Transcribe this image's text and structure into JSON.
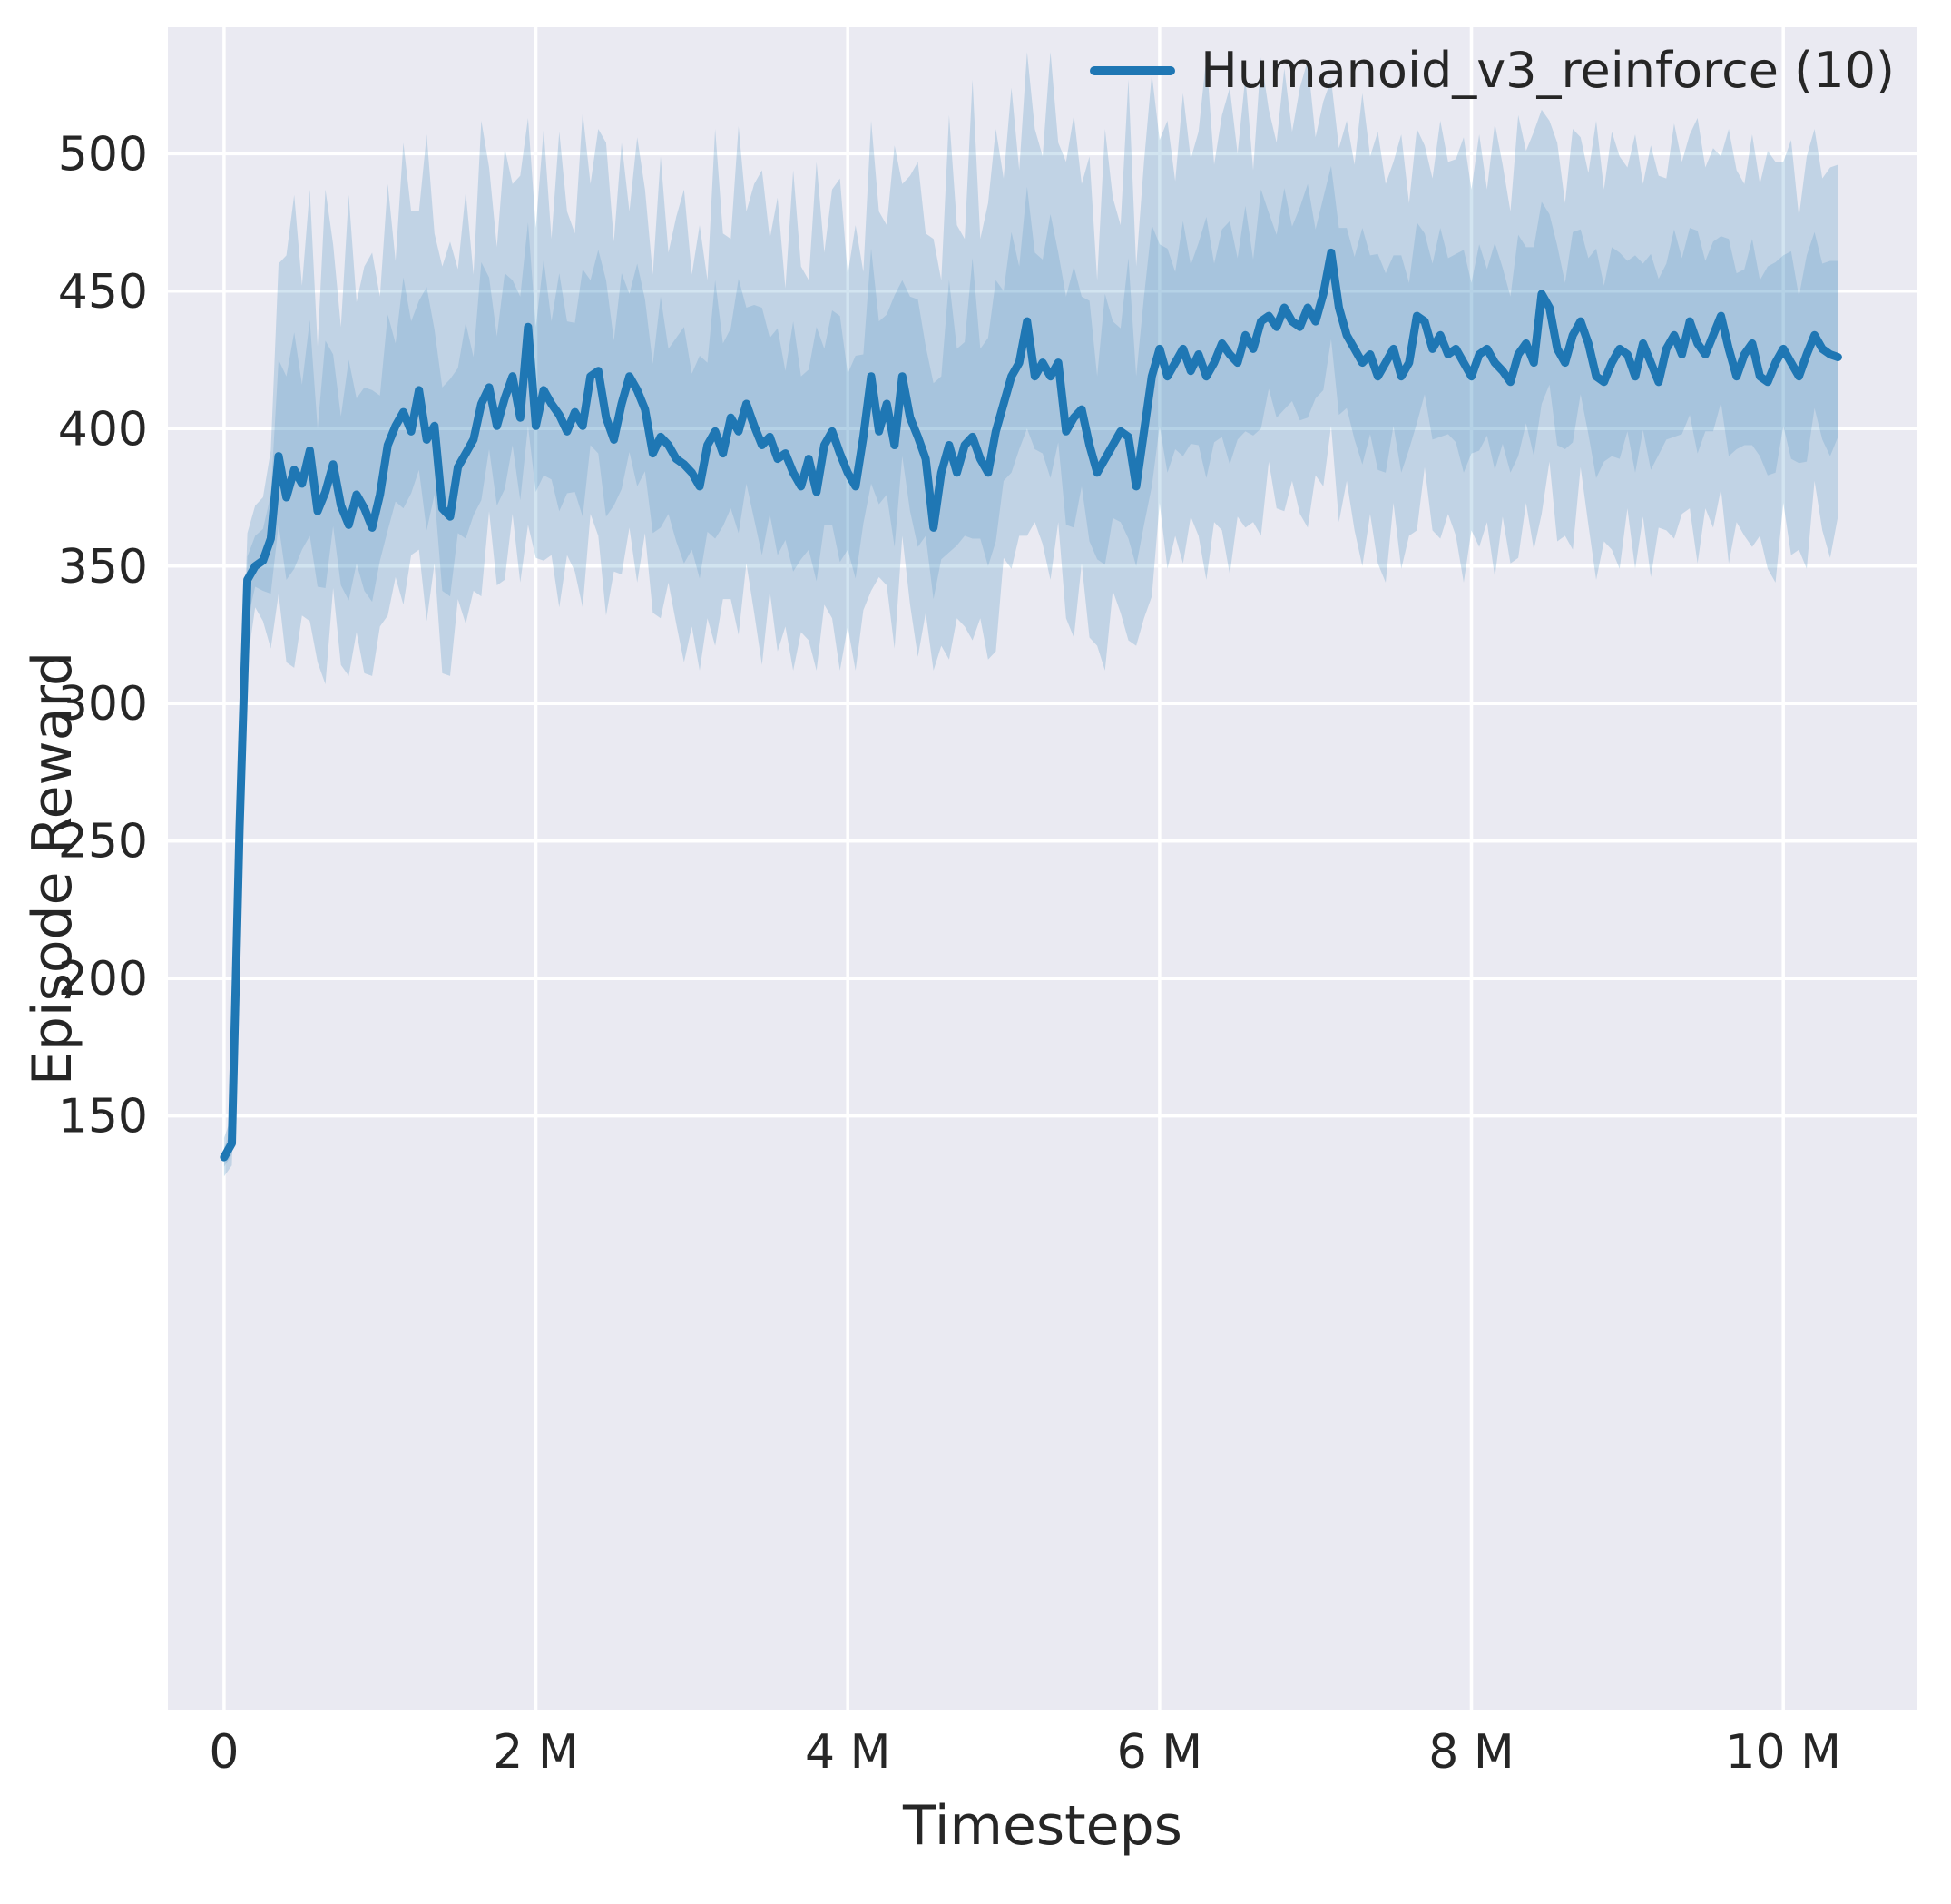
{
  "chart_data": {
    "type": "line",
    "title": "",
    "xlabel": "Timesteps",
    "ylabel": "Episode Reward",
    "x_unit": "millions of timesteps",
    "grid": true,
    "legend_position": "upper right",
    "xlim": [
      -0.36,
      10.86
    ],
    "ylim": [
      -66,
      546
    ],
    "xticks": {
      "values": [
        0,
        2,
        4,
        6,
        8,
        10
      ],
      "labels": [
        "0",
        "2 M",
        "4 M",
        "6 M",
        "8 M",
        "10 M"
      ]
    },
    "yticks": {
      "values": [
        150,
        200,
        250,
        300,
        350,
        400,
        450,
        500
      ],
      "labels": [
        "150",
        "200",
        "250",
        "300",
        "350",
        "400",
        "450",
        "500"
      ]
    },
    "colors": {
      "plot_bg": "#eaeaf2",
      "grid": "#ffffff",
      "text": "#262626",
      "line": "#1f77b4",
      "band_fill": "#1f77b4"
    },
    "series": [
      {
        "name": "Humanoid_v3_reinforce (10)",
        "color": "#1f77b4",
        "x": [
          0,
          0.05,
          0.1,
          0.15,
          0.2,
          0.25,
          0.3,
          0.35,
          0.4,
          0.45,
          0.5,
          0.55,
          0.6,
          0.65,
          0.7,
          0.75,
          0.8,
          0.85,
          0.9,
          0.95,
          1,
          1.05,
          1.1,
          1.15,
          1.2,
          1.25,
          1.3,
          1.35,
          1.4,
          1.45,
          1.5,
          1.55,
          1.6,
          1.65,
          1.7,
          1.75,
          1.8,
          1.85,
          1.9,
          1.95,
          2,
          2.05,
          2.1,
          2.15,
          2.2,
          2.25,
          2.3,
          2.35,
          2.4,
          2.45,
          2.5,
          2.55,
          2.6,
          2.65,
          2.7,
          2.75,
          2.8,
          2.85,
          2.9,
          2.95,
          3,
          3.05,
          3.1,
          3.15,
          3.2,
          3.25,
          3.3,
          3.35,
          3.4,
          3.45,
          3.5,
          3.55,
          3.6,
          3.65,
          3.7,
          3.75,
          3.8,
          3.85,
          3.9,
          3.95,
          4,
          4.05,
          4.1,
          4.15,
          4.2,
          4.25,
          4.3,
          4.35,
          4.4,
          4.45,
          4.5,
          4.55,
          4.6,
          4.65,
          4.7,
          4.75,
          4.8,
          4.85,
          4.9,
          4.95,
          5,
          5.05,
          5.1,
          5.15,
          5.2,
          5.25,
          5.3,
          5.35,
          5.4,
          5.45,
          5.5,
          5.55,
          5.6,
          5.65,
          5.7,
          5.75,
          5.8,
          5.85,
          5.9,
          5.95,
          6,
          6.05,
          6.1,
          6.15,
          6.2,
          6.25,
          6.3,
          6.35,
          6.4,
          6.45,
          6.5,
          6.55,
          6.6,
          6.65,
          6.7,
          6.75,
          6.8,
          6.85,
          6.9,
          6.95,
          7,
          7.05,
          7.1,
          7.15,
          7.2,
          7.25,
          7.3,
          7.35,
          7.4,
          7.45,
          7.5,
          7.55,
          7.6,
          7.65,
          7.7,
          7.75,
          7.8,
          7.85,
          7.9,
          7.95,
          8,
          8.05,
          8.1,
          8.15,
          8.2,
          8.25,
          8.3,
          8.35,
          8.4,
          8.45,
          8.5,
          8.55,
          8.6,
          8.65,
          8.7,
          8.75,
          8.8,
          8.85,
          8.9,
          8.95,
          9,
          9.05,
          9.1,
          9.15,
          9.2,
          9.25,
          9.3,
          9.35,
          9.4,
          9.45,
          9.5,
          9.55,
          9.6,
          9.65,
          9.7,
          9.75,
          9.8,
          9.85,
          9.9,
          9.95,
          10,
          10.05,
          10.1,
          10.15,
          10.2,
          10.25,
          10.3,
          10.35
        ],
        "mean": [
          135,
          140,
          255,
          345,
          350,
          352,
          360,
          390,
          375,
          385,
          380,
          392,
          370,
          377,
          387,
          372,
          365,
          376,
          371,
          364,
          376,
          394,
          401,
          406,
          399,
          414,
          396,
          401,
          371,
          368,
          386,
          391,
          396,
          409,
          415,
          401,
          411,
          419,
          404,
          437,
          401,
          414,
          409,
          405,
          399,
          406,
          401,
          419,
          421,
          404,
          396,
          409,
          419,
          414,
          407,
          391,
          397,
          394,
          389,
          387,
          384,
          379,
          394,
          399,
          391,
          404,
          399,
          409,
          401,
          394,
          397,
          389,
          391,
          384,
          379,
          389,
          377,
          394,
          399,
          391,
          384,
          379,
          397,
          419,
          399,
          409,
          394,
          419,
          404,
          397,
          389,
          364,
          384,
          394,
          384,
          394,
          397,
          389,
          384,
          399,
          409,
          419,
          424,
          439,
          419,
          424,
          419,
          424,
          399,
          404,
          407,
          394,
          384,
          389,
          394,
          399,
          397,
          379,
          399,
          419,
          429,
          419,
          424,
          429,
          421,
          427,
          419,
          424,
          431,
          427,
          424,
          434,
          429,
          439,
          441,
          437,
          444,
          439,
          437,
          444,
          439,
          449,
          464,
          444,
          434,
          429,
          424,
          427,
          419,
          424,
          429,
          419,
          424,
          441,
          439,
          429,
          434,
          427,
          429,
          424,
          419,
          427,
          429,
          424,
          421,
          417,
          427,
          431,
          424,
          449,
          444,
          429,
          424,
          434,
          439,
          431,
          419,
          417,
          424,
          429,
          427,
          419,
          431,
          424,
          417,
          429,
          434,
          427,
          439,
          431,
          427,
          434,
          441,
          429,
          419,
          427,
          431,
          419,
          417,
          424,
          429,
          424,
          419,
          427,
          434,
          429,
          427,
          426
        ],
        "band_lower": [
          128,
          132,
          235,
          315,
          335,
          330,
          320,
          340,
          315,
          313,
          332,
          330,
          315,
          307,
          342,
          314,
          310,
          326,
          311,
          310,
          328,
          332,
          346,
          336,
          354,
          356,
          330,
          351,
          311,
          310,
          338,
          329,
          341,
          339,
          370,
          343,
          345,
          369,
          344,
          365,
          353,
          352,
          354,
          335,
          354,
          348,
          335,
          369,
          361,
          332,
          348,
          347,
          364,
          344,
          362,
          333,
          331,
          344,
          329,
          315,
          328,
          312,
          331,
          321,
          338,
          338,
          325,
          351,
          333,
          314,
          341,
          319,
          328,
          312,
          326,
          323,
          312,
          336,
          331,
          312,
          328,
          312,
          334,
          341,
          346,
          343,
          320,
          361,
          336,
          317,
          333,
          312,
          321,
          316,
          331,
          328,
          323,
          331,
          316,
          319,
          353,
          349,
          361,
          361,
          366,
          358,
          345,
          366,
          331,
          324,
          351,
          324,
          321,
          312,
          341,
          333,
          323,
          321,
          331,
          339,
          373,
          349,
          361,
          351,
          368,
          361,
          345,
          366,
          363,
          347,
          368,
          364,
          366,
          361,
          388,
          371,
          370,
          381,
          369,
          364,
          383,
          379,
          401,
          366,
          381,
          363,
          350,
          369,
          351,
          344,
          373,
          349,
          361,
          363,
          386,
          363,
          360,
          369,
          361,
          344,
          363,
          357,
          366,
          346,
          368,
          351,
          353,
          373,
          356,
          369,
          388,
          359,
          361,
          356,
          386,
          365,
          345,
          359,
          356,
          349,
          371,
          349,
          368,
          346,
          364,
          363,
          360,
          369,
          371,
          351,
          371,
          364,
          378,
          351,
          366,
          361,
          357,
          361,
          349,
          344,
          373,
          354,
          356,
          349,
          381,
          363,
          353,
          368
        ],
        "band_upper": [
          142,
          150,
          278,
          362,
          372,
          375,
          392,
          460,
          463,
          485,
          452,
          487,
          430,
          487,
          467,
          437,
          485,
          446,
          459,
          464,
          448,
          489,
          461,
          504,
          479,
          479,
          507,
          471,
          459,
          468,
          458,
          486,
          456,
          512,
          495,
          466,
          502,
          489,
          492,
          513,
          473,
          509,
          469,
          508,
          479,
          471,
          515,
          489,
          509,
          504,
          468,
          504,
          479,
          506,
          487,
          456,
          499,
          464,
          477,
          487,
          456,
          474,
          454,
          509,
          471,
          469,
          510,
          479,
          489,
          494,
          469,
          484,
          451,
          494,
          459,
          454,
          497,
          464,
          487,
          491,
          456,
          474,
          457,
          512,
          479,
          474,
          503,
          489,
          492,
          497,
          471,
          469,
          454,
          514,
          474,
          469,
          527,
          469,
          482,
          509,
          491,
          524,
          494,
          537,
          509,
          499,
          537,
          504,
          497,
          514,
          489,
          499,
          454,
          509,
          484,
          474,
          527,
          459,
          497,
          529,
          505,
          512,
          490,
          522,
          498,
          508,
          535,
          496,
          514,
          524,
          500,
          528,
          494,
          535,
          516,
          504,
          531,
          508,
          524,
          534,
          506,
          519,
          527,
          502,
          512,
          496,
          522,
          499,
          508,
          489,
          497,
          507,
          482,
          509,
          503,
          491,
          512,
          497,
          498,
          506,
          487,
          507,
          487,
          511,
          496,
          479,
          514,
          501,
          508,
          516,
          512,
          504,
          482,
          509,
          506,
          493,
          512,
          487,
          508,
          499,
          495,
          507,
          489,
          503,
          492,
          491,
          511,
          497,
          507,
          513,
          495,
          502,
          499,
          509,
          494,
          489,
          507,
          489,
          501,
          497,
          497,
          505,
          477,
          499,
          509,
          491,
          495,
          496
        ]
      }
    ]
  }
}
